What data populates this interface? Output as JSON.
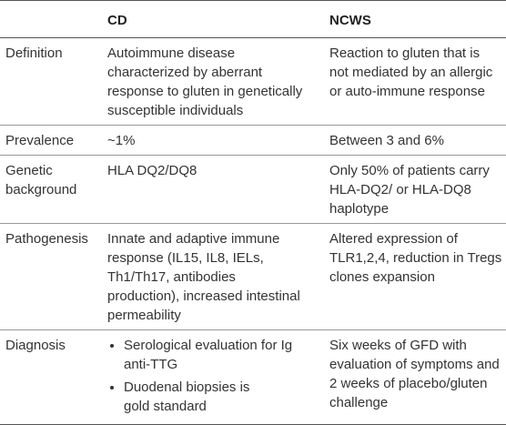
{
  "table": {
    "header": {
      "cd": "CD",
      "ncws": "NCWS"
    },
    "rows": [
      {
        "label": [
          "Definition"
        ],
        "cd": [
          "Autoimmune disease",
          "characterized by aberrant",
          "response to gluten in genetically",
          "susceptible individuals"
        ],
        "ncws": [
          "Reaction to gluten that is",
          "not mediated by an allergic",
          "or auto-immune response"
        ]
      },
      {
        "label": [
          "Prevalence"
        ],
        "cd": [
          "~1%"
        ],
        "ncws": [
          "Between 3 and 6%"
        ]
      },
      {
        "label": [
          "Genetic",
          "background"
        ],
        "cd": [
          "HLA DQ2/DQ8"
        ],
        "ncws": [
          "Only 50% of patients carry",
          "HLA-DQ2/ or HLA-DQ8",
          "haplotype"
        ]
      },
      {
        "label": [
          "Pathogenesis"
        ],
        "cd": [
          "Innate and adaptive immune",
          "response (IL15, IL8, IELs,",
          "Th1/Th17, antibodies",
          "production), increased intestinal",
          "permeability"
        ],
        "ncws": [
          "Altered expression of",
          "TLR1,2,4, reduction in Tregs",
          "clones expansion"
        ]
      },
      {
        "label": [
          "Diagnosis"
        ],
        "cd": {
          "bullets": [
            [
              "Serological evaluation for Ig",
              "anti-TTG"
            ],
            [
              "Duodenal biopsies is",
              "gold standard"
            ]
          ]
        },
        "ncws": [
          "Six weeks of GFD with",
          "evaluation of symptoms and",
          "2 weeks of placebo/gluten",
          "challenge"
        ]
      }
    ]
  }
}
